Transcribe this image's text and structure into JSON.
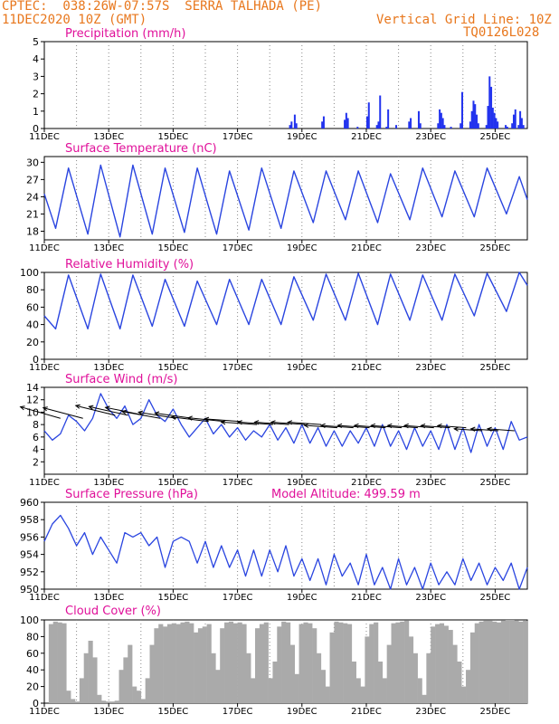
{
  "header": {
    "line1": "CPTEC:  038:26W-07:57S  SERRA TALHADA (PE)",
    "line2": "11DEC2020 10Z (GMT)",
    "grid_note": "Vertical Grid Line: 10Z",
    "run_id": "TQ0126L028",
    "model_altitude": "Model Altitude: 499.59 m"
  },
  "colors": {
    "header": "#e8771d",
    "title": "#e0109a",
    "line": "#2a45e0",
    "bar_blue": "#2233ee",
    "cloud": "#aaaaaa"
  },
  "x_axis": {
    "labels": [
      "11DEC",
      "13DEC",
      "15DEC",
      "17DEC",
      "19DEC",
      "21DEC",
      "23DEC",
      "25DEC"
    ],
    "days": [
      0,
      2,
      4,
      6,
      8,
      10,
      12,
      14
    ],
    "range_days": [
      0,
      15
    ]
  },
  "chart_data": [
    {
      "type": "bar",
      "title": "Precipitation (mm/h)",
      "ylim": [
        0,
        5
      ],
      "yticks": [
        0,
        1,
        2,
        3,
        4,
        5
      ],
      "x_day": [
        7.6,
        7.65,
        7.75,
        7.8,
        8.6,
        8.65,
        9.3,
        9.35,
        9.4,
        9.7,
        10.0,
        10.05,
        10.3,
        10.35,
        10.4,
        10.6,
        10.65,
        10.9,
        11.3,
        11.35,
        11.6,
        11.65,
        12.2,
        12.25,
        12.3,
        12.35,
        12.4,
        12.6,
        12.9,
        12.95,
        13.2,
        13.25,
        13.3,
        13.35,
        13.4,
        13.45,
        13.7,
        13.75,
        13.8,
        13.85,
        13.9,
        13.95,
        14.0,
        14.05,
        14.3,
        14.35,
        14.5,
        14.55,
        14.6,
        14.7,
        14.75,
        14.8,
        14.85
      ],
      "values": [
        0.2,
        0.4,
        0.8,
        0.3,
        0.4,
        0.7,
        0.5,
        0.9,
        0.6,
        0.1,
        0.7,
        1.5,
        0.2,
        0.4,
        1.9,
        0.1,
        1.1,
        0.2,
        0.4,
        0.6,
        1.0,
        0.3,
        0.3,
        1.1,
        0.9,
        0.6,
        0.2,
        0.1,
        0.3,
        2.1,
        0.4,
        1.0,
        1.6,
        1.4,
        0.8,
        0.3,
        0.2,
        1.3,
        3.0,
        2.4,
        1.2,
        0.9,
        0.6,
        0.4,
        0.2,
        0.1,
        0.3,
        0.8,
        1.1,
        0.2,
        1.0,
        0.6,
        0.2
      ]
    },
    {
      "type": "line",
      "title": "Surface Temperature (nC)",
      "ylim": [
        16.5,
        31
      ],
      "yticks": [
        18,
        21,
        24,
        27,
        30
      ],
      "series": [
        {
          "min": [
            18.5,
            17.5,
            17.0,
            17.5,
            17.8,
            17.5,
            18.2,
            18.5,
            19.5,
            20.0,
            19.5,
            20.0,
            20.5,
            20.5,
            21.0
          ],
          "max": [
            29.0,
            29.5,
            29.5,
            29.0,
            29.0,
            28.5,
            29.0,
            28.5,
            28.5,
            28.5,
            28.0,
            29.0,
            28.5,
            29.0,
            27.5
          ],
          "start": 24.5,
          "end": 23.5
        }
      ]
    },
    {
      "type": "line",
      "title": "Relative Humidity (%)",
      "ylim": [
        0,
        100
      ],
      "yticks": [
        0,
        20,
        40,
        60,
        80,
        100
      ],
      "series": [
        {
          "min": [
            35,
            35,
            35,
            38,
            38,
            40,
            40,
            40,
            45,
            45,
            40,
            45,
            45,
            50,
            55
          ],
          "max": [
            97,
            98,
            97,
            92,
            90,
            92,
            92,
            95,
            98,
            99,
            98,
            97,
            98,
            99,
            100
          ],
          "start": 50,
          "end": 85
        }
      ]
    },
    {
      "type": "line",
      "title": "Surface Wind (m/s)",
      "ylim": [
        0,
        14
      ],
      "yticks": [
        2,
        4,
        6,
        8,
        10,
        12,
        14
      ],
      "series": [
        {
          "values": [
            7.0,
            5.5,
            6.5,
            9.5,
            8.5,
            7.0,
            9.0,
            13.0,
            10.5,
            9.0,
            11.0,
            8.0,
            9.0,
            12.0,
            9.5,
            8.5,
            10.5,
            8.0,
            6.0,
            7.5,
            9.0,
            6.5,
            8.0,
            6.0,
            7.5,
            5.5,
            7.0,
            6.0,
            8.0,
            5.5,
            7.5,
            5.0,
            8.0,
            5.0,
            7.5,
            4.5,
            7.0,
            4.5,
            7.0,
            5.0,
            7.5,
            4.5,
            8.0,
            4.5,
            7.0,
            4.0,
            7.5,
            4.5,
            7.0,
            4.0,
            8.0,
            4.0,
            7.5,
            3.5,
            8.0,
            4.5,
            7.5,
            4.0,
            8.5,
            5.5,
            6.0
          ]
        }
      ],
      "arrows_x_day": [
        0.5,
        1.2,
        2.2,
        2.6,
        3.1,
        3.6,
        4.1,
        4.6,
        5.1,
        5.6,
        6.1,
        6.6,
        7.1,
        7.6,
        8.1,
        8.6,
        9.1,
        9.6,
        10.1,
        10.6,
        11.1,
        11.6,
        12.1,
        12.6,
        13.1,
        13.6,
        14.1,
        14.6
      ],
      "arrows_speed": [
        9.0,
        9.0,
        9.5,
        9.5,
        9.5,
        9.0,
        9.0,
        9.0,
        8.5,
        8.5,
        8.5,
        8.0,
        8.0,
        8.0,
        8.0,
        8.0,
        7.5,
        7.5,
        7.5,
        7.5,
        7.5,
        7.5,
        7.5,
        7.5,
        7.5,
        7.0,
        7.0,
        7.0
      ]
    },
    {
      "type": "line",
      "title": "Surface Pressure (hPa)",
      "ylim": [
        950,
        960
      ],
      "yticks": [
        950,
        952,
        954,
        956,
        958,
        960
      ],
      "series": [
        {
          "values": [
            955.5,
            957.5,
            958.5,
            957.0,
            955.0,
            956.5,
            954.0,
            956.0,
            954.5,
            953.0,
            956.5,
            956.0,
            956.5,
            955.0,
            956.0,
            952.5,
            955.5,
            956.0,
            955.5,
            953.0,
            955.5,
            952.5,
            955.0,
            952.5,
            954.5,
            951.5,
            954.5,
            951.5,
            954.5,
            952.0,
            955.0,
            951.5,
            953.5,
            951.0,
            953.5,
            950.5,
            954.0,
            951.5,
            953.0,
            950.5,
            954.0,
            950.5,
            952.5,
            950.0,
            953.5,
            950.5,
            952.5,
            950.0,
            953.0,
            950.5,
            952.0,
            950.5,
            953.5,
            951.0,
            953.0,
            950.5,
            952.5,
            951.0,
            953.0,
            950.0,
            952.5
          ]
        }
      ]
    },
    {
      "type": "area",
      "title": "Cloud Cover (%)",
      "ylim": [
        0,
        100
      ],
      "yticks": [
        0,
        20,
        40,
        60,
        80,
        100
      ],
      "series": [
        {
          "values": [
            0,
            95,
            98,
            97,
            96,
            15,
            5,
            2,
            30,
            60,
            75,
            55,
            10,
            3,
            2,
            2,
            3,
            40,
            55,
            70,
            20,
            15,
            5,
            30,
            70,
            90,
            95,
            92,
            95,
            96,
            95,
            97,
            98,
            96,
            85,
            90,
            92,
            95,
            60,
            40,
            90,
            97,
            98,
            96,
            97,
            95,
            60,
            30,
            90,
            95,
            97,
            30,
            50,
            92,
            98,
            97,
            70,
            35,
            95,
            97,
            96,
            90,
            60,
            40,
            20,
            85,
            98,
            97,
            96,
            95,
            50,
            30,
            20,
            80,
            95,
            97,
            50,
            30,
            70,
            96,
            97,
            98,
            99,
            80,
            60,
            30,
            10,
            60,
            92,
            95,
            96,
            93,
            88,
            70,
            50,
            20,
            40,
            85,
            96,
            98,
            99,
            99,
            98,
            97,
            99,
            100,
            100,
            99,
            98,
            99
          ]
        }
      ]
    }
  ]
}
